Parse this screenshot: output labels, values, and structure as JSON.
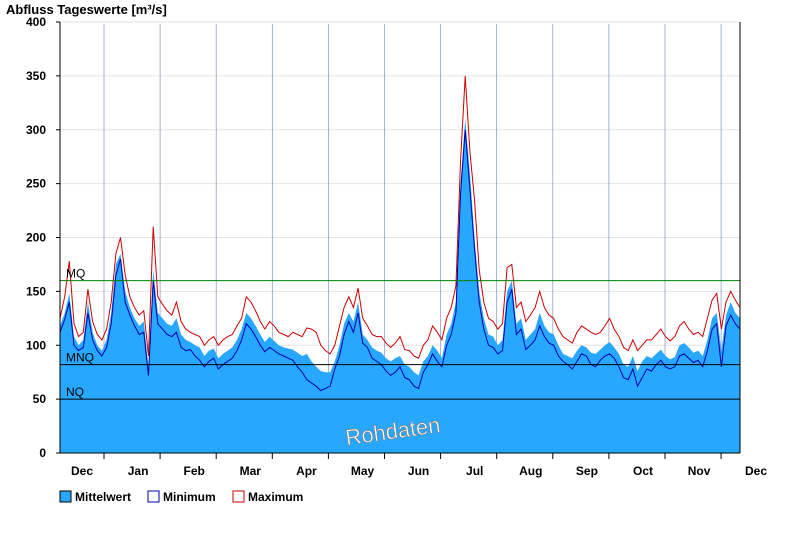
{
  "chart_data": {
    "type": "area",
    "title": "Abfluss Tageswerte [m³/s]",
    "ylim": [
      0,
      400
    ],
    "yticks": [
      0,
      50,
      100,
      150,
      200,
      250,
      300,
      350,
      400
    ],
    "months": [
      "Dec",
      "Jan",
      "Feb",
      "Mar",
      "Apr",
      "May",
      "Jun",
      "Jul",
      "Aug",
      "Sep",
      "Oct",
      "Nov",
      "Dec"
    ],
    "grid": true,
    "legend_position": "bottom-left",
    "reference_lines": [
      {
        "label": "MQ",
        "value": 160,
        "color": "#008000"
      },
      {
        "label": "MNQ",
        "value": 82,
        "color": "#000000"
      },
      {
        "label": "NQ",
        "value": 50,
        "color": "#000000"
      }
    ],
    "watermark": "Rohdaten",
    "series": [
      {
        "name": "Mittelwert",
        "color": "#28a7ff",
        "values": [
          118,
          130,
          148,
          108,
          100,
          105,
          140,
          112,
          100,
          95,
          105,
          130,
          175,
          185,
          150,
          135,
          125,
          118,
          122,
          80,
          170,
          130,
          125,
          120,
          118,
          125,
          110,
          105,
          103,
          100,
          98,
          90,
          95,
          97,
          88,
          92,
          95,
          98,
          105,
          115,
          130,
          125,
          118,
          110,
          103,
          108,
          104,
          100,
          98,
          97,
          96,
          93,
          90,
          92,
          85,
          80,
          76,
          75,
          75,
          85,
          100,
          120,
          130,
          122,
          140,
          110,
          105,
          98,
          95,
          93,
          88,
          85,
          88,
          90,
          82,
          80,
          75,
          72,
          85,
          90,
          100,
          95,
          88,
          110,
          120,
          140,
          250,
          310,
          260,
          200,
          150,
          125,
          110,
          108,
          100,
          105,
          150,
          160,
          120,
          125,
          105,
          110,
          115,
          130,
          118,
          112,
          110,
          100,
          92,
          90,
          88,
          95,
          100,
          98,
          93,
          92,
          96,
          100,
          103,
          98,
          92,
          82,
          80,
          90,
          76,
          85,
          90,
          88,
          92,
          96,
          90,
          87,
          89,
          100,
          102,
          98,
          93,
          95,
          90,
          105,
          125,
          130,
          95,
          128,
          140,
          130,
          125
        ]
      },
      {
        "name": "Minimum",
        "color": "#0000aa",
        "values": [
          112,
          124,
          140,
          100,
          95,
          98,
          130,
          105,
          95,
          90,
          98,
          120,
          165,
          180,
          140,
          128,
          118,
          110,
          112,
          72,
          160,
          120,
          115,
          110,
          108,
          112,
          98,
          95,
          96,
          90,
          86,
          80,
          85,
          88,
          78,
          82,
          85,
          88,
          95,
          105,
          120,
          115,
          108,
          100,
          94,
          98,
          95,
          92,
          90,
          88,
          86,
          80,
          75,
          68,
          65,
          62,
          58,
          60,
          62,
          78,
          90,
          110,
          122,
          112,
          130,
          102,
          98,
          88,
          85,
          82,
          76,
          72,
          75,
          80,
          70,
          68,
          62,
          60,
          75,
          82,
          92,
          85,
          80,
          100,
          110,
          130,
          240,
          300,
          245,
          190,
          140,
          115,
          100,
          98,
          92,
          95,
          140,
          152,
          110,
          115,
          96,
          100,
          105,
          118,
          108,
          102,
          100,
          90,
          85,
          82,
          78,
          85,
          92,
          90,
          82,
          80,
          86,
          90,
          92,
          88,
          80,
          70,
          68,
          78,
          62,
          70,
          78,
          76,
          82,
          86,
          80,
          78,
          80,
          90,
          92,
          88,
          84,
          86,
          80,
          95,
          115,
          120,
          80,
          118,
          128,
          120,
          115
        ]
      },
      {
        "name": "Maximum",
        "color": "#cc0000",
        "values": [
          125,
          145,
          178,
          120,
          108,
          112,
          152,
          122,
          110,
          105,
          115,
          140,
          185,
          200,
          165,
          145,
          135,
          128,
          132,
          90,
          210,
          145,
          138,
          132,
          128,
          140,
          122,
          115,
          112,
          110,
          108,
          100,
          105,
          108,
          100,
          105,
          108,
          110,
          118,
          125,
          145,
          140,
          132,
          122,
          115,
          122,
          118,
          112,
          110,
          108,
          112,
          110,
          108,
          116,
          115,
          112,
          100,
          95,
          92,
          100,
          118,
          135,
          145,
          135,
          153,
          125,
          118,
          110,
          108,
          108,
          102,
          98,
          102,
          108,
          96,
          95,
          90,
          88,
          100,
          105,
          118,
          112,
          105,
          125,
          135,
          155,
          270,
          350,
          280,
          235,
          170,
          140,
          125,
          122,
          115,
          120,
          172,
          175,
          135,
          140,
          122,
          128,
          135,
          150,
          135,
          128,
          125,
          115,
          108,
          105,
          102,
          112,
          118,
          115,
          112,
          110,
          112,
          118,
          125,
          115,
          108,
          98,
          95,
          105,
          95,
          100,
          105,
          105,
          110,
          115,
          108,
          104,
          108,
          118,
          122,
          115,
          110,
          112,
          108,
          125,
          142,
          148,
          115,
          140,
          150,
          142,
          135
        ]
      }
    ]
  }
}
